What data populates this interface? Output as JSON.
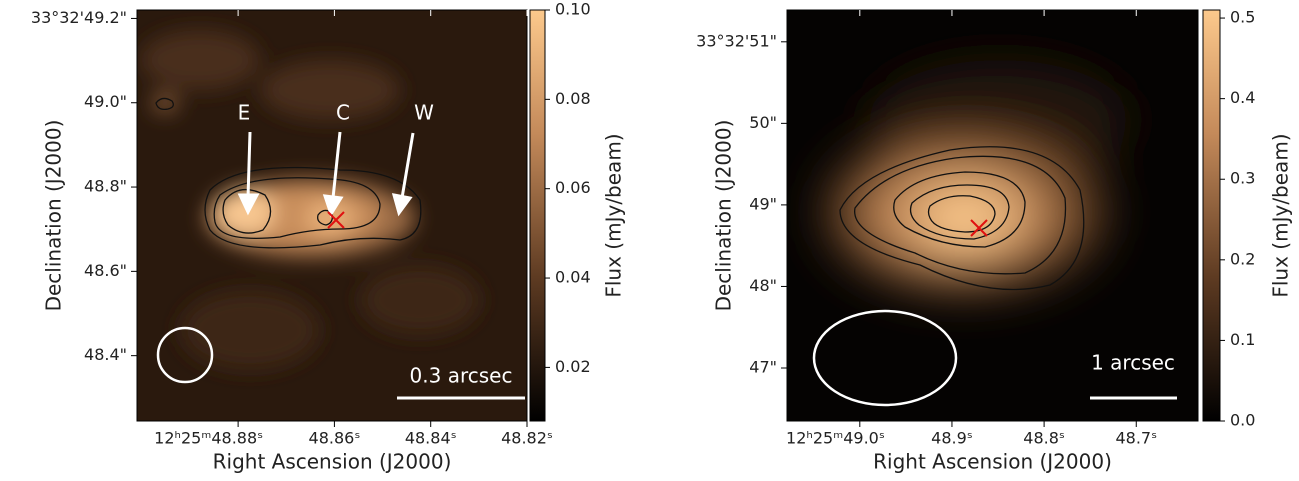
{
  "chart_data": [
    {
      "type": "image",
      "x_label": "Right Ascension (J2000)",
      "y_label": "Declination (J2000)",
      "colorbar_label": "Flux (mJy/beam)",
      "xlim": [
        48.901,
        48.82
      ],
      "ylim": [
        48.245,
        49.22
      ],
      "clim": [
        0.008,
        0.1
      ],
      "xticks": [
        {
          "value": 48.88,
          "label": "12ʰ25ᵐ48.88ˢ"
        },
        {
          "value": 48.86,
          "label": "48.86ˢ"
        },
        {
          "value": 48.84,
          "label": "48.84ˢ"
        },
        {
          "value": 48.82,
          "label": "48.82ˢ"
        }
      ],
      "yticks": [
        {
          "value": 49.2,
          "label": "33°32'49.2\""
        },
        {
          "value": 49.0,
          "label": "49.0\""
        },
        {
          "value": 48.8,
          "label": "48.8\""
        },
        {
          "value": 48.6,
          "label": "48.6\""
        },
        {
          "value": 48.4,
          "label": "48.4\""
        }
      ],
      "cticks": [
        {
          "value": 0.1,
          "label": "0.10"
        },
        {
          "value": 0.08,
          "label": "0.08"
        },
        {
          "value": 0.06,
          "label": "0.06"
        },
        {
          "value": 0.04,
          "label": "0.04"
        },
        {
          "value": 0.02,
          "label": "0.02"
        }
      ],
      "annotations": [
        "E",
        "C",
        "W"
      ],
      "scale_bar": "0.3 arcsec"
    },
    {
      "type": "image",
      "x_label": "Right Ascension (J2000)",
      "y_label": "Declination (J2000)",
      "colorbar_label": "Flux (mJy/beam)",
      "xlim": [
        49.079,
        48.633
      ],
      "ylim": [
        46.35,
        51.39
      ],
      "clim": [
        0,
        0.51
      ],
      "xticks": [
        {
          "value": 49.0,
          "label": "12ʰ25ᵐ49.0ˢ"
        },
        {
          "value": 48.9,
          "label": "48.9ˢ"
        },
        {
          "value": 48.8,
          "label": "48.8ˢ"
        },
        {
          "value": 48.7,
          "label": "48.7ˢ"
        }
      ],
      "yticks": [
        {
          "value": 51,
          "label": "33°32'51\""
        },
        {
          "value": 50,
          "label": "50\""
        },
        {
          "value": 49,
          "label": "49\""
        },
        {
          "value": 48,
          "label": "48\""
        },
        {
          "value": 47,
          "label": "47\""
        }
      ],
      "cticks": [
        0.5,
        0.4,
        0.3,
        0.2,
        0.1,
        {
          "value": 0,
          "label": "0.0"
        }
      ],
      "annotations": [],
      "scale_bar": "1 arcsec"
    }
  ]
}
